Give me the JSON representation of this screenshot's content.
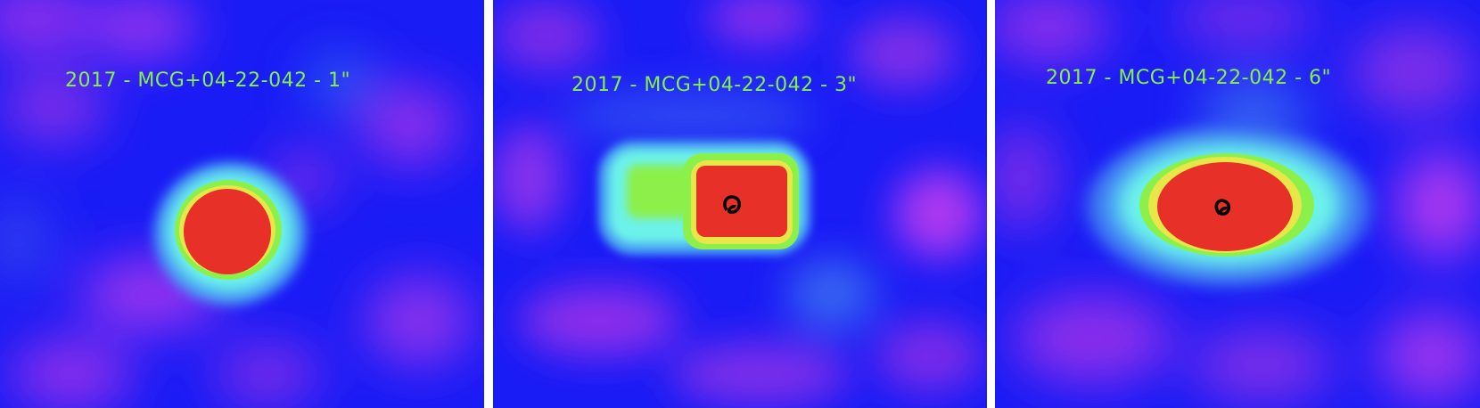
{
  "panels": [
    {
      "label": "2017 - MCG+04-22-042 - 1\""
    },
    {
      "label": "2017 - MCG+04-22-042 - 3\""
    },
    {
      "label": "2017 - MCG+04-22-042 - 6\""
    }
  ],
  "colors": {
    "background_blue": "#1a1cf5",
    "noise_purple": "#a032ea",
    "noise_magenta": "#c83cf0",
    "cyan": "#6cf2ea",
    "green": "#8cf04a",
    "yellow": "#e8e648",
    "red": "#e63028",
    "contour_black": "#000000",
    "label_green": "#86f04a"
  }
}
